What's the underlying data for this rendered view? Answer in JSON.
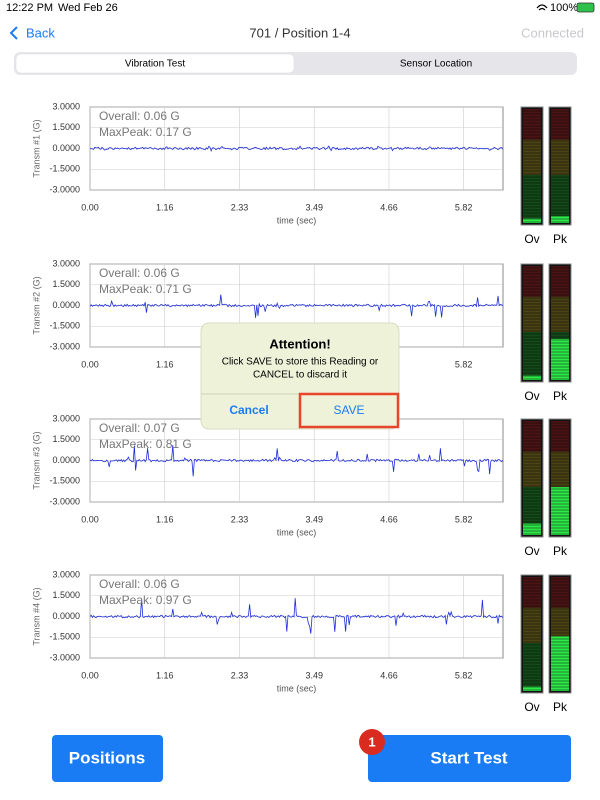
{
  "status_bar": {
    "time": "12:22 PM",
    "date": "Wed Feb 26",
    "battery": "100%"
  },
  "nav": {
    "back": "Back",
    "title": "701 / Position 1-4",
    "status": "Connected"
  },
  "tabs": [
    "Vibration Test",
    "Sensor Location"
  ],
  "plots": [
    {
      "y_label": "Transm #1 (G)",
      "overall": "Overall: 0.06 G",
      "maxpeak": "MaxPeak: 0.17 G"
    },
    {
      "y_label": "Transm #2 (G)",
      "overall": "Overall: 0.06 G",
      "maxpeak": "MaxPeak: 0.71 G"
    },
    {
      "y_label": "Transm #3 (G)",
      "overall": "Overall: 0.07 G",
      "maxpeak": "MaxPeak: 0.81 G"
    },
    {
      "y_label": "Transm #4 (G)",
      "overall": "Overall: 0.06 G",
      "maxpeak": "MaxPeak: 0.97 G"
    }
  ],
  "y_ticks": [
    "3.0000",
    "1.5000",
    "0.0000",
    "-1.5000",
    "-3.0000"
  ],
  "x_ticks": [
    "0.00",
    "1.16",
    "2.33",
    "3.49",
    "4.66",
    "5.82"
  ],
  "x_label": "time (sec)",
  "meter_labels": [
    "Ov",
    "Pk"
  ],
  "dialog": {
    "title": "Attention!",
    "message_lines": [
      "Click SAVE to store this Reading or",
      "CANCEL to discard it"
    ],
    "cancel": "Cancel",
    "save": "SAVE"
  },
  "buttons": {
    "positions": "Positions",
    "start": "Start Test",
    "badge": "1"
  }
}
